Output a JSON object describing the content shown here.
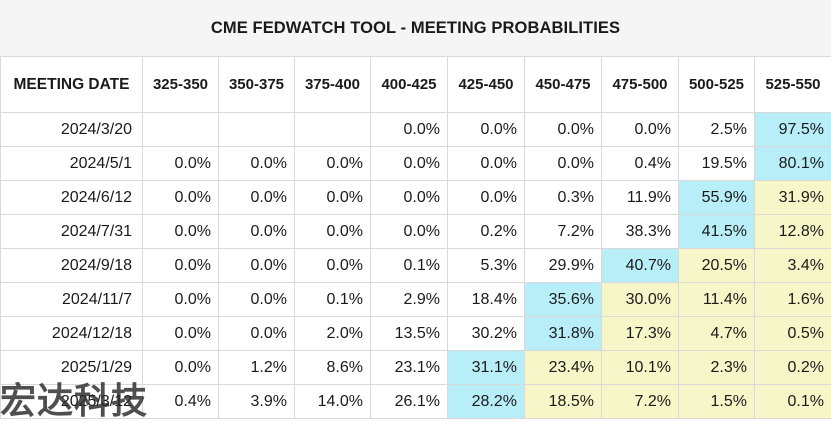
{
  "title": "CME FEDWATCH TOOL - MEETING PROBABILITIES",
  "header": {
    "date_label": "MEETING DATE",
    "ranges": [
      "325-350",
      "350-375",
      "375-400",
      "400-425",
      "425-450",
      "450-475",
      "475-500",
      "500-525",
      "525-550"
    ]
  },
  "rows": [
    {
      "date": "2024/3/20",
      "cells": [
        "",
        "",
        "",
        "0.0%",
        "0.0%",
        "0.0%",
        "0.0%",
        "2.5%",
        "97.5%"
      ],
      "hl": [
        "",
        "",
        "",
        "",
        "",
        "",
        "",
        "",
        "b"
      ]
    },
    {
      "date": "2024/5/1",
      "cells": [
        "0.0%",
        "0.0%",
        "0.0%",
        "0.0%",
        "0.0%",
        "0.0%",
        "0.4%",
        "19.5%",
        "80.1%"
      ],
      "hl": [
        "",
        "",
        "",
        "",
        "",
        "",
        "",
        "",
        "b"
      ]
    },
    {
      "date": "2024/6/12",
      "cells": [
        "0.0%",
        "0.0%",
        "0.0%",
        "0.0%",
        "0.0%",
        "0.3%",
        "11.9%",
        "55.9%",
        "31.9%"
      ],
      "hl": [
        "",
        "",
        "",
        "",
        "",
        "",
        "",
        "b",
        "y"
      ]
    },
    {
      "date": "2024/7/31",
      "cells": [
        "0.0%",
        "0.0%",
        "0.0%",
        "0.0%",
        "0.2%",
        "7.2%",
        "38.3%",
        "41.5%",
        "12.8%"
      ],
      "hl": [
        "",
        "",
        "",
        "",
        "",
        "",
        "",
        "b",
        "y"
      ]
    },
    {
      "date": "2024/9/18",
      "cells": [
        "0.0%",
        "0.0%",
        "0.0%",
        "0.1%",
        "5.3%",
        "29.9%",
        "40.7%",
        "20.5%",
        "3.4%"
      ],
      "hl": [
        "",
        "",
        "",
        "",
        "",
        "",
        "b",
        "y",
        "y"
      ]
    },
    {
      "date": "2024/11/7",
      "cells": [
        "0.0%",
        "0.0%",
        "0.1%",
        "2.9%",
        "18.4%",
        "35.6%",
        "30.0%",
        "11.4%",
        "1.6%"
      ],
      "hl": [
        "",
        "",
        "",
        "",
        "",
        "b",
        "y",
        "y",
        "y"
      ]
    },
    {
      "date": "2024/12/18",
      "cells": [
        "0.0%",
        "0.0%",
        "2.0%",
        "13.5%",
        "30.2%",
        "31.8%",
        "17.3%",
        "4.7%",
        "0.5%"
      ],
      "hl": [
        "",
        "",
        "",
        "",
        "",
        "b",
        "y",
        "y",
        "y"
      ]
    },
    {
      "date": "2025/1/29",
      "cells": [
        "0.0%",
        "1.2%",
        "8.6%",
        "23.1%",
        "31.1%",
        "23.4%",
        "10.1%",
        "2.3%",
        "0.2%"
      ],
      "hl": [
        "",
        "",
        "",
        "",
        "b",
        "y",
        "y",
        "y",
        "y"
      ]
    },
    {
      "date": "2025/3/12",
      "cells": [
        "0.4%",
        "3.9%",
        "14.0%",
        "26.1%",
        "28.2%",
        "18.5%",
        "7.2%",
        "1.5%",
        "0.1%"
      ],
      "hl": [
        "",
        "",
        "",
        "",
        "b",
        "y",
        "y",
        "y",
        "y"
      ]
    }
  ],
  "colors": {
    "highlight_blue": "#b8eef8",
    "highlight_yellow": "#f6f6c8"
  },
  "watermark": "宏达科技"
}
